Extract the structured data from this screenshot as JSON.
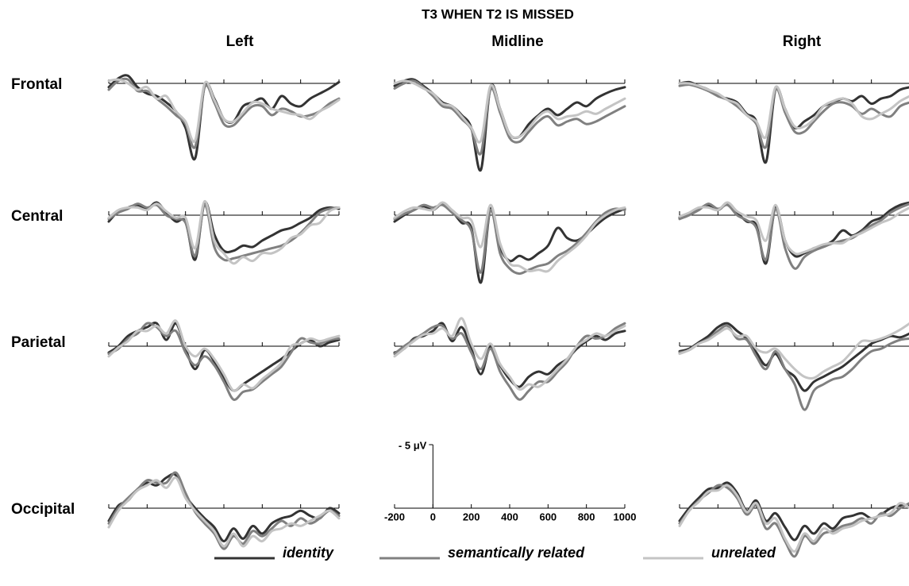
{
  "chart_data": {
    "type": "line",
    "title": "T3 WHEN T2 IS MISSED",
    "columns": [
      "Left",
      "Midline",
      "Right"
    ],
    "series": [
      {
        "name": "identity",
        "color": "#333333"
      },
      {
        "name": "semantically related",
        "color": "#808080"
      },
      {
        "name": "unrelated",
        "color": "#c4c4c4"
      }
    ],
    "x": [
      -200,
      -150,
      -100,
      -50,
      0,
      50,
      100,
      150,
      200,
      250,
      300,
      350,
      400,
      450,
      500,
      550,
      600,
      650,
      700,
      750,
      800,
      850,
      900,
      950,
      1000
    ],
    "xlim": [
      -200,
      1000
    ],
    "xticks": [
      -200,
      0,
      200,
      400,
      600,
      800,
      1000
    ],
    "ylim": [
      -3,
      7
    ],
    "scale": {
      "value": -5,
      "label": "- 5 μV"
    },
    "rows": [
      {
        "name": "Frontal",
        "cells": [
          [
            [
              0.3,
              -0.4,
              -0.6,
              0.3,
              0.8,
              1.0,
              1.5,
              2.2,
              3.5,
              5.9,
              0.2,
              1.2,
              2.8,
              3.0,
              1.8,
              1.5,
              1.2,
              2.0,
              1.0,
              1.6,
              1.8,
              1.2,
              0.8,
              0.4,
              -0.1
            ],
            [
              0.5,
              -0.2,
              -0.3,
              0.6,
              0.6,
              1.2,
              1.8,
              2.5,
              3.2,
              5.0,
              0.3,
              1.5,
              3.2,
              3.3,
              2.5,
              1.8,
              1.8,
              2.5,
              2.0,
              2.2,
              2.6,
              2.5,
              2.2,
              1.6,
              1.2
            ],
            [
              -0.2,
              -0.3,
              0,
              0.5,
              0.3,
              1.2,
              1.0,
              2.2,
              3.0,
              4.5,
              0.0,
              1.3,
              2.8,
              3.0,
              2.3,
              1.5,
              1.6,
              2.0,
              2.2,
              2.4,
              2.5,
              2.8,
              2.2,
              1.8,
              1.3
            ]
          ],
          [
            [
              0.2,
              -0.2,
              -0.3,
              0.2,
              0.8,
              1.5,
              1.8,
              2.5,
              3.5,
              6.8,
              0.3,
              2.0,
              4.0,
              4.2,
              3.2,
              2.5,
              2.0,
              2.5,
              2.0,
              1.5,
              1.8,
              1.2,
              0.8,
              0.5,
              0.3
            ],
            [
              0.4,
              0,
              -0.2,
              0.3,
              1.0,
              1.8,
              2.0,
              2.8,
              3.6,
              5.5,
              0.5,
              2.3,
              4.3,
              4.6,
              3.8,
              3.0,
              2.6,
              3.3,
              3.0,
              2.8,
              3.2,
              3.0,
              2.6,
              2.2,
              1.8
            ],
            [
              0,
              -0.2,
              0,
              0.4,
              0.8,
              1.6,
              1.8,
              2.6,
              3.5,
              4.5,
              0.2,
              2.0,
              4.0,
              4.2,
              3.5,
              2.6,
              2.2,
              2.8,
              2.6,
              2.5,
              2.2,
              2.4,
              2.0,
              1.6,
              1.2
            ]
          ],
          [
            [
              0,
              -0.1,
              0.2,
              0.5,
              1.0,
              1.2,
              1.5,
              2.4,
              3.0,
              6.2,
              0.5,
              2.0,
              3.5,
              3.0,
              2.5,
              1.8,
              1.5,
              1.2,
              1.4,
              1.0,
              1.6,
              1.2,
              1.0,
              0.5,
              0.3
            ],
            [
              0.2,
              0.1,
              0.3,
              0.6,
              1.0,
              1.3,
              1.8,
              2.5,
              3.2,
              5.0,
              0.5,
              2.3,
              3.8,
              3.8,
              3.0,
              2.2,
              1.6,
              1.5,
              1.8,
              2.4,
              2.0,
              2.4,
              2.6,
              1.8,
              1.5
            ],
            [
              0,
              0,
              0.2,
              0.5,
              0.8,
              1.3,
              1.6,
              2.5,
              3.0,
              4.2,
              0.3,
              2.0,
              3.4,
              3.4,
              2.8,
              1.8,
              1.4,
              1.2,
              1.6,
              2.6,
              2.8,
              2.4,
              2.0,
              1.4,
              1.0
            ]
          ]
        ]
      },
      {
        "name": "Central",
        "cells": [
          [
            [
              0.5,
              -0.3,
              -0.6,
              -0.8,
              -0.5,
              -1.0,
              -0.2,
              0.5,
              0.5,
              3.5,
              -1.0,
              1.5,
              2.8,
              2.8,
              2.4,
              2.5,
              2.0,
              1.6,
              1.2,
              1.0,
              0.6,
              0.2,
              -0.4,
              -0.6,
              -0.5
            ],
            [
              0.3,
              -0.2,
              -0.5,
              -0.9,
              -0.6,
              -0.8,
              0,
              0.3,
              0.6,
              3.2,
              -0.8,
              2.5,
              3.5,
              3.4,
              3.2,
              3.0,
              2.8,
              2.6,
              2.4,
              2.0,
              1.4,
              0.6,
              -0.2,
              -0.5,
              -0.6
            ],
            [
              0.2,
              -0.4,
              -0.6,
              -0.6,
              -0.4,
              -0.9,
              -0.3,
              0.2,
              0.2,
              2.6,
              -1.1,
              2.0,
              3.0,
              3.8,
              3.3,
              3.6,
              3.0,
              3.0,
              2.6,
              1.8,
              1.5,
              0.8,
              0.6,
              -0.3,
              -0.6
            ]
          ],
          [
            [
              0.5,
              0,
              -0.4,
              -0.7,
              -0.4,
              -0.9,
              -0.3,
              0.6,
              1.0,
              5.3,
              -0.5,
              2.5,
              3.6,
              3.2,
              3.5,
              3.0,
              2.4,
              1.0,
              1.8,
              2.0,
              1.5,
              0.8,
              0.2,
              -0.2,
              -0.5
            ],
            [
              0.3,
              -0.1,
              -0.4,
              -0.8,
              -0.6,
              -0.8,
              -0.2,
              0.4,
              1.2,
              4.5,
              -0.4,
              3.0,
              4.2,
              4.6,
              4.3,
              4.0,
              3.8,
              3.2,
              2.8,
              2.2,
              1.4,
              0.5,
              -0.2,
              -0.5,
              -0.4
            ],
            [
              0.2,
              -0.3,
              -0.6,
              -0.5,
              -0.4,
              -1.0,
              -0.4,
              0.2,
              0.4,
              2.5,
              -0.8,
              2.2,
              3.8,
              4.0,
              4.4,
              4.3,
              4.4,
              3.6,
              3.0,
              2.4,
              1.6,
              0.6,
              0,
              -0.4,
              -0.6
            ]
          ],
          [
            [
              0.2,
              -0.1,
              -0.5,
              -0.8,
              -0.4,
              -0.9,
              -0.2,
              0.5,
              0.8,
              3.8,
              -0.6,
              2.0,
              3.2,
              3.0,
              2.6,
              2.4,
              2.0,
              1.2,
              1.6,
              1.2,
              0.5,
              0.2,
              -0.4,
              -0.8,
              -1.0
            ],
            [
              0.3,
              0,
              -0.4,
              -0.9,
              -0.5,
              -0.8,
              0,
              0.4,
              1.0,
              3.5,
              -0.5,
              2.6,
              4.2,
              3.3,
              2.8,
              2.5,
              2.2,
              2.0,
              1.8,
              1.3,
              0.8,
              0.4,
              -0.2,
              -0.6,
              -0.9
            ],
            [
              0.1,
              -0.2,
              -0.6,
              -0.6,
              -0.4,
              -1.0,
              -0.3,
              0.1,
              0.4,
              2.0,
              -0.8,
              2.0,
              3.0,
              2.9,
              2.6,
              2.3,
              2.2,
              2.2,
              1.7,
              1.4,
              1.0,
              0.6,
              0.3,
              -0.2,
              -0.6
            ]
          ]
        ]
      },
      {
        "name": "Parietal",
        "cells": [
          [
            [
              0.5,
              0,
              -0.8,
              -1.2,
              -1.5,
              -1.8,
              -0.5,
              -1.8,
              0.2,
              1.8,
              0.3,
              1.2,
              2.5,
              3.5,
              3.0,
              2.5,
              2.0,
              1.5,
              1.0,
              0.4,
              -0.2,
              -0.5,
              0,
              -0.3,
              -0.5
            ],
            [
              0.6,
              0.2,
              -0.6,
              -1.0,
              -1.8,
              -1.5,
              -0.8,
              -1.2,
              0.5,
              1.5,
              0.8,
              1.5,
              2.8,
              4.2,
              3.6,
              3.4,
              2.8,
              2.2,
              1.6,
              0.5,
              -0.6,
              -0.3,
              -0.2,
              -0.5,
              -0.6
            ],
            [
              0.8,
              0.1,
              -0.4,
              -1.2,
              -1.2,
              -1.6,
              -1.0,
              -2.0,
              0,
              0.8,
              0.2,
              1.0,
              2.2,
              3.5,
              3.0,
              3.3,
              2.6,
              2.0,
              1.3,
              0,
              -0.2,
              -0.6,
              -0.4,
              -0.6,
              -0.8
            ]
          ],
          [
            [
              0.5,
              0.2,
              -0.6,
              -0.8,
              -1.2,
              -1.8,
              -0.4,
              -1.5,
              0.2,
              2.2,
              0,
              1.5,
              2.6,
              3.2,
              2.4,
              2.0,
              2.2,
              1.5,
              1.0,
              0.2,
              -0.4,
              -0.8,
              -0.5,
              -1.0,
              -1.2
            ],
            [
              0.6,
              0,
              -0.5,
              -1.0,
              -1.5,
              -1.6,
              -0.6,
              -1.0,
              0.5,
              1.8,
              0.2,
              2.0,
              3.2,
              4.2,
              3.5,
              2.8,
              2.8,
              2.0,
              1.2,
              0,
              -0.8,
              -0.6,
              -0.8,
              -1.4,
              -1.8
            ],
            [
              0.8,
              0.2,
              -0.4,
              -0.9,
              -1.0,
              -1.4,
              -0.8,
              -2.2,
              -0.2,
              1.0,
              -0.2,
              1.4,
              2.4,
              3.4,
              3.0,
              3.2,
              2.6,
              1.8,
              1.0,
              0,
              -0.5,
              -1.0,
              -0.8,
              -1.2,
              -1.6
            ]
          ],
          [
            [
              0.4,
              0.2,
              -0.3,
              -0.8,
              -1.5,
              -1.8,
              -1.2,
              -0.6,
              0.5,
              1.5,
              0.6,
              1.8,
              2.4,
              3.5,
              2.8,
              2.4,
              2.0,
              1.6,
              1.0,
              0.4,
              -0.2,
              -0.5,
              -0.8,
              -0.7,
              -1.0
            ],
            [
              0.5,
              0.3,
              -0.2,
              -0.6,
              -1.2,
              -1.6,
              -0.6,
              -0.5,
              0.8,
              1.8,
              0.4,
              1.8,
              3.0,
              5.0,
              3.5,
              3.0,
              2.6,
              2.4,
              1.8,
              1.0,
              0.4,
              0.2,
              -0.2,
              -0.5,
              -0.6
            ],
            [
              0.6,
              0.3,
              -0.2,
              -0.5,
              -1.0,
              -1.4,
              -0.8,
              -0.8,
              0.2,
              0.5,
              0.2,
              1.0,
              1.8,
              2.4,
              2.5,
              2.0,
              1.6,
              1.2,
              0.4,
              -0.4,
              -0.4,
              -0.6,
              -0.9,
              -1.3,
              -1.8
            ]
          ]
        ]
      },
      {
        "name": "Occipital",
        "cells": [
          [
            [
              1.0,
              -0.2,
              -0.6,
              -1.5,
              -2.0,
              -1.8,
              -2.4,
              -2.6,
              -1.0,
              0,
              0.8,
              1.5,
              2.6,
              1.6,
              2.4,
              1.4,
              2.0,
              1.2,
              0.8,
              0.6,
              0.2,
              0.6,
              0.8,
              0,
              0.4
            ],
            [
              1.2,
              0,
              -0.8,
              -1.5,
              -2.2,
              -2.0,
              -2.0,
              -2.8,
              -1.2,
              0.3,
              1.2,
              2.0,
              3.2,
              2.2,
              2.8,
              1.8,
              2.2,
              1.6,
              1.0,
              1.4,
              0.8,
              1.2,
              0.8,
              0.2,
              0.6
            ],
            [
              1.5,
              0.2,
              -0.6,
              -1.4,
              -1.8,
              -2.2,
              -1.6,
              -2.4,
              -0.8,
              0.2,
              1.0,
              1.8,
              3.0,
              2.0,
              3.0,
              2.2,
              2.6,
              1.8,
              1.6,
              1.2,
              1.4,
              1.0,
              0.6,
              0.2,
              0.8
            ]
          ],
          null,
          [
            [
              1.0,
              0,
              -0.8,
              -1.5,
              -1.6,
              -2.0,
              -1.2,
              0.2,
              -0.6,
              1.0,
              0.4,
              1.5,
              2.5,
              1.4,
              2.0,
              1.2,
              1.6,
              0.8,
              0.6,
              0.4,
              0.8,
              0.5,
              0,
              -0.2,
              -0.2
            ],
            [
              1.2,
              0.2,
              -0.6,
              -1.2,
              -1.8,
              -1.6,
              -0.8,
              0.5,
              -0.2,
              1.6,
              1.2,
              2.6,
              3.8,
              2.2,
              2.8,
              2.0,
              1.8,
              1.4,
              1.2,
              0.8,
              1.2,
              0.4,
              0.6,
              0,
              -0.4
            ],
            [
              1.4,
              0.2,
              -0.5,
              -1.3,
              -1.4,
              -1.8,
              -1.0,
              0.3,
              -0.4,
              1.2,
              0.8,
              2.4,
              3.4,
              2.0,
              2.6,
              1.6,
              2.0,
              1.6,
              1.4,
              1.0,
              0.8,
              0.6,
              0.4,
              -0.4,
              0
            ]
          ]
        ]
      }
    ]
  }
}
